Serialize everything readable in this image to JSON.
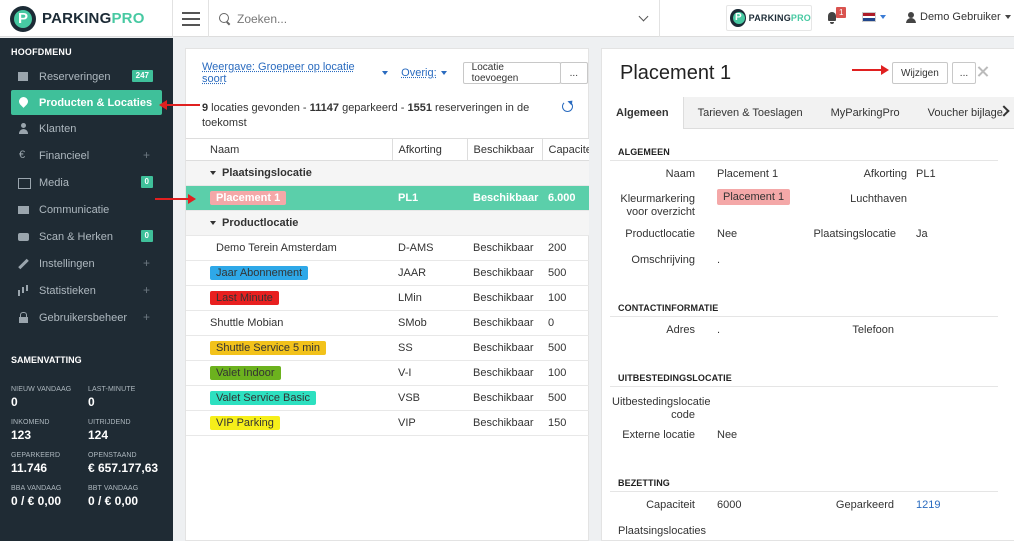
{
  "header": {
    "brand_a": "PARKING",
    "brand_b": "PRO",
    "search_placeholder": "Zoeken...",
    "notification_count": "1",
    "user_name": "Demo Gebruiker",
    "flag_colors": [
      "#ae1c28",
      "#ffffff",
      "#21468b"
    ]
  },
  "sidebar": {
    "heading": "HOOFDMENU",
    "items": [
      {
        "label": "Reserveringen",
        "icon": "calendar-icon",
        "badge": "247"
      },
      {
        "label": "Producten & Locaties",
        "icon": "map-pin-icon",
        "active": true
      },
      {
        "label": "Klanten",
        "icon": "user-icon"
      },
      {
        "label": "Financieel",
        "icon": "euro-icon",
        "plus": "+"
      },
      {
        "label": "Media",
        "icon": "image-icon",
        "badge": "0"
      },
      {
        "label": "Communicatie",
        "icon": "envelope-icon"
      },
      {
        "label": "Scan & Herken",
        "icon": "camera-icon",
        "badge": "0"
      },
      {
        "label": "Instellingen",
        "icon": "wrench-icon",
        "plus": "+"
      },
      {
        "label": "Statistieken",
        "icon": "bar-chart-icon",
        "plus": "+"
      },
      {
        "label": "Gebruikersbeheer",
        "icon": "lock-icon",
        "plus": "+"
      }
    ],
    "summary_heading": "SAMENVATTING",
    "summary": [
      {
        "label": "NIEUW VANDAAG",
        "value": "0"
      },
      {
        "label": "LAST-MINUTE",
        "value": "0"
      },
      {
        "label": "INKOMEND",
        "value": "123"
      },
      {
        "label": "UITRIJDEND",
        "value": "124"
      },
      {
        "label": "GEPARKEERD",
        "value": "11.746"
      },
      {
        "label": "OPENSTAAND",
        "value": "€ 657.177,63"
      },
      {
        "label": "BBA VANDAAG",
        "value": "0 / € 0,00"
      },
      {
        "label": "BBT VANDAAG",
        "value": "0 / € 0,00"
      }
    ]
  },
  "list": {
    "view_label": "Weergave: Groepeer op locatie soort",
    "other_label": "Overig:",
    "add_button": "Locatie toevoegen",
    "more_button": "...",
    "found": {
      "count": "9",
      "t1": " locaties gevonden - ",
      "parked": "11147",
      "t2": " geparkeerd - ",
      "reservations": "1551",
      "t3": " reserveringen in de toekomst"
    },
    "columns": [
      "Naam",
      "Afkorting",
      "Beschikbaar",
      "Capaciteit"
    ],
    "groups": [
      {
        "name": "Plaatsingslocatie",
        "rows": [
          {
            "name": "Placement 1",
            "code": "PL1",
            "status": "Beschikbaar",
            "capacity": "6.000",
            "color": "#f4a8a8",
            "selected": true
          }
        ]
      },
      {
        "name": "Productlocatie",
        "rows": [
          {
            "name": "Demo Terein Amsterdam",
            "code": "D-AMS",
            "status": "Beschikbaar",
            "capacity": "200",
            "color": "#ffffff"
          },
          {
            "name": "Jaar Abonnement",
            "code": "JAAR",
            "status": "Beschikbaar",
            "capacity": "500",
            "color": "#2ea8e8"
          },
          {
            "name": "Last Minute",
            "code": "LMin",
            "status": "Beschikbaar",
            "capacity": "100",
            "color": "#e82020"
          },
          {
            "name": "Shuttle Mobian",
            "code": "SMob",
            "status": "Beschikbaar",
            "capacity": "0",
            "color": ""
          },
          {
            "name": "Shuttle Service 5 min",
            "code": "SS",
            "status": "Beschikbaar",
            "capacity": "500",
            "color": "#f2c21b"
          },
          {
            "name": "Valet Indoor",
            "code": "V-I",
            "status": "Beschikbaar",
            "capacity": "100",
            "color": "#6cb21e"
          },
          {
            "name": "Valet Service Basic",
            "code": "VSB",
            "status": "Beschikbaar",
            "capacity": "500",
            "color": "#2de0c0"
          },
          {
            "name": "VIP Parking",
            "code": "VIP",
            "status": "Beschikbaar",
            "capacity": "150",
            "color": "#f6ef1a"
          }
        ]
      }
    ]
  },
  "detail": {
    "title": "Placement 1",
    "edit_button": "Wijzigen",
    "more_button": "...",
    "tabs": [
      "Algemeen",
      "Tarieven & Toeslagen",
      "MyParkingPro",
      "Voucher bijlage"
    ],
    "general": {
      "heading": "ALGEMEEN",
      "naam_label": "Naam",
      "naam_value": "Placement 1",
      "afkorting_label": "Afkorting",
      "afkorting_value": "PL1",
      "kleur_label": "Kleurmarkering voor overzicht",
      "kleur_value": "Placement 1",
      "luchthaven_label": "Luchthaven",
      "productlocatie_label": "Productlocatie",
      "productlocatie_value": "Nee",
      "plaatsingslocatie_label": "Plaatsingslocatie",
      "plaatsingslocatie_value": "Ja",
      "omschrijving_label": "Omschrijving",
      "omschrijving_value": "."
    },
    "contact": {
      "heading": "CONTACTINFORMATIE",
      "adres_label": "Adres",
      "adres_value": ".",
      "telefoon_label": "Telefoon"
    },
    "outsourcing": {
      "heading": "UITBESTEDINGSLOCATIE",
      "code_label": "Uitbestedingslocatie code",
      "extern_label": "Externe locatie",
      "extern_value": "Nee"
    },
    "occupancy": {
      "heading": "BEZETTING",
      "capaciteit_label": "Capaciteit",
      "capaciteit_value": "6000",
      "geparkeerd_label": "Geparkeerd",
      "geparkeerd_value": "1219",
      "plaatsing_label": "Plaatsingslocaties"
    }
  }
}
